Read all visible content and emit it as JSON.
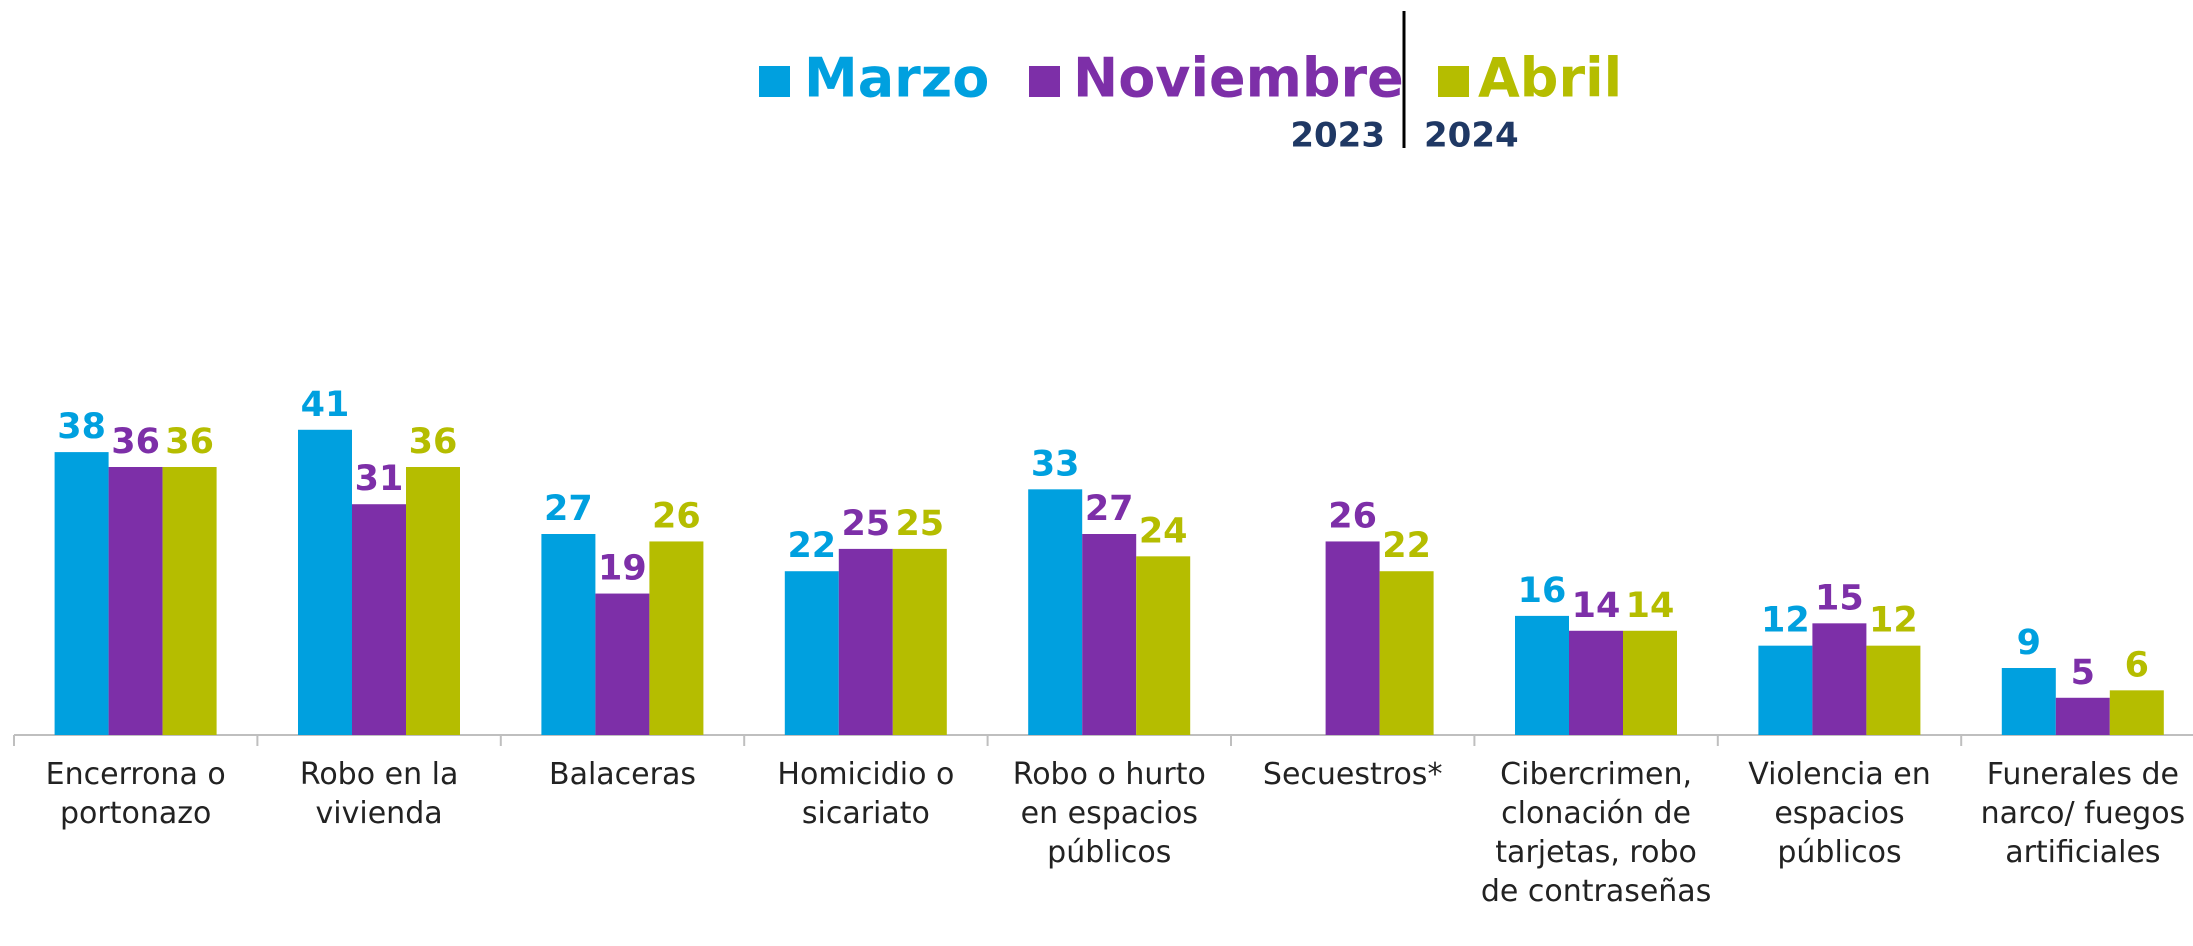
{
  "chart_data": {
    "type": "bar",
    "categories": [
      "Encerrona o portonazo",
      "Robo en la vivienda",
      "Balaceras",
      "Homicidio o sicariato",
      "Robo o hurto en espacios públicos",
      "Secuestros*",
      "Cibercrimen, clonación de tarjetas, robo de contraseñas",
      "Violencia en espacios públicos",
      "Funerales de narco/ fuegos artificiales"
    ],
    "series": [
      {
        "name": "Marzo",
        "color": "#00a0df",
        "values": [
          38,
          41,
          27,
          22,
          33,
          null,
          16,
          12,
          9
        ]
      },
      {
        "name": "Noviembre",
        "color": "#7d2fa8",
        "values": [
          36,
          31,
          19,
          25,
          27,
          26,
          14,
          15,
          5
        ]
      },
      {
        "name": "Abril",
        "color": "#b5bd00",
        "values": [
          36,
          36,
          26,
          25,
          24,
          22,
          14,
          12,
          6
        ]
      }
    ],
    "legend_years": [
      "2023",
      "2024"
    ],
    "ylim": [
      0,
      45
    ]
  }
}
